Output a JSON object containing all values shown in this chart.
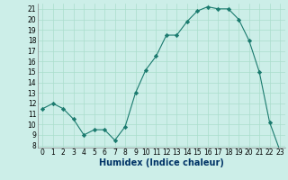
{
  "xlabel": "Humidex (Indice chaleur)",
  "x": [
    0,
    1,
    2,
    3,
    4,
    5,
    6,
    7,
    8,
    9,
    10,
    11,
    12,
    13,
    14,
    15,
    16,
    17,
    18,
    19,
    20,
    21,
    22,
    23
  ],
  "y": [
    11.5,
    12.0,
    11.5,
    10.5,
    9.0,
    9.5,
    9.5,
    8.5,
    9.8,
    13.0,
    15.2,
    16.5,
    18.5,
    18.5,
    19.8,
    20.8,
    21.2,
    21.0,
    21.0,
    20.0,
    18.0,
    15.0,
    10.2,
    7.5
  ],
  "line_color": "#1a7a6e",
  "marker_color": "#1a7a6e",
  "bg_color": "#cceee8",
  "grid_color": "#aaddcc",
  "ylim": [
    7.8,
    21.5
  ],
  "xlim": [
    -0.5,
    23.5
  ],
  "yticks": [
    8,
    9,
    10,
    11,
    12,
    13,
    14,
    15,
    16,
    17,
    18,
    19,
    20,
    21
  ],
  "xticks": [
    0,
    1,
    2,
    3,
    4,
    5,
    6,
    7,
    8,
    9,
    10,
    11,
    12,
    13,
    14,
    15,
    16,
    17,
    18,
    19,
    20,
    21,
    22,
    23
  ],
  "tick_labelsize": 5.5,
  "xlabel_fontsize": 7,
  "xlabel_color": "#003366"
}
